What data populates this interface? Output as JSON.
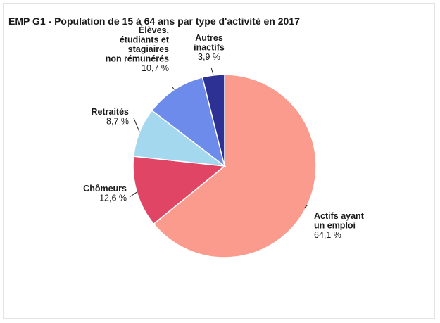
{
  "chart_data": {
    "type": "pie",
    "title": "EMP G1 - Population de 15 à 64 ans par type d'activité en 2017",
    "slices": [
      {
        "label": [
          "Actifs ayant",
          "un emploi"
        ],
        "value": 64.1,
        "value_label": "64,1 %",
        "color": "#fb9b8e"
      },
      {
        "label": [
          "Chômeurs"
        ],
        "value": 12.6,
        "value_label": "12,6 %",
        "color": "#e04565"
      },
      {
        "label": [
          "Retraités"
        ],
        "value": 8.7,
        "value_label": "8,7 %",
        "color": "#a3d8ef"
      },
      {
        "label": [
          "Élèves,",
          "étudiants et",
          "stagiaires",
          "non rémunérés"
        ],
        "value": 10.7,
        "value_label": "10,7 %",
        "color": "#6c8bea"
      },
      {
        "label": [
          "Autres",
          "inactifs"
        ],
        "value": 3.9,
        "value_label": "3,9 %",
        "color": "#2e3194"
      }
    ]
  }
}
